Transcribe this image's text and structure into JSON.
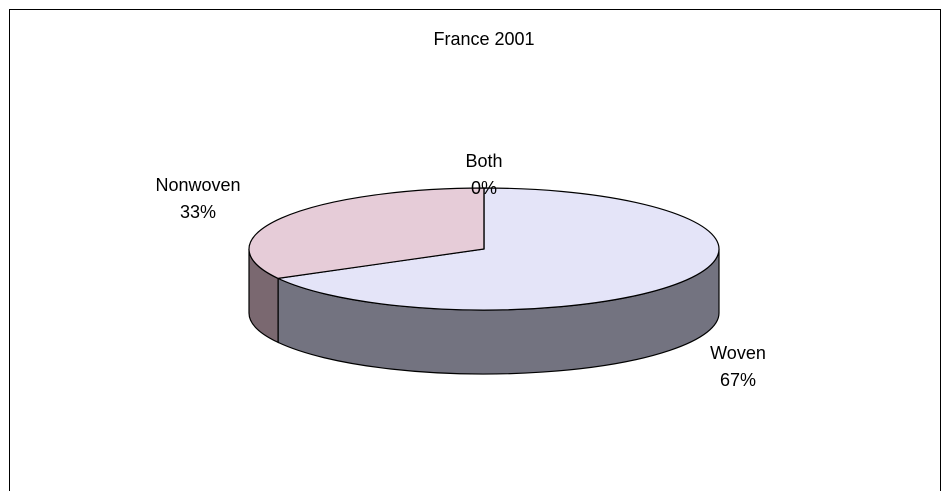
{
  "chart_data": {
    "type": "pie",
    "title": "France 2001",
    "categories": [
      "Woven",
      "Nonwoven",
      "Both"
    ],
    "values": [
      67,
      33,
      0
    ],
    "value_labels": [
      "67%",
      "33%",
      "0%"
    ],
    "colors": [
      "#e4e4f8",
      "#e6ccd8",
      "#c8c8d8"
    ],
    "side_colors": [
      "#737380",
      "#7a6870",
      "#60606a"
    ]
  }
}
